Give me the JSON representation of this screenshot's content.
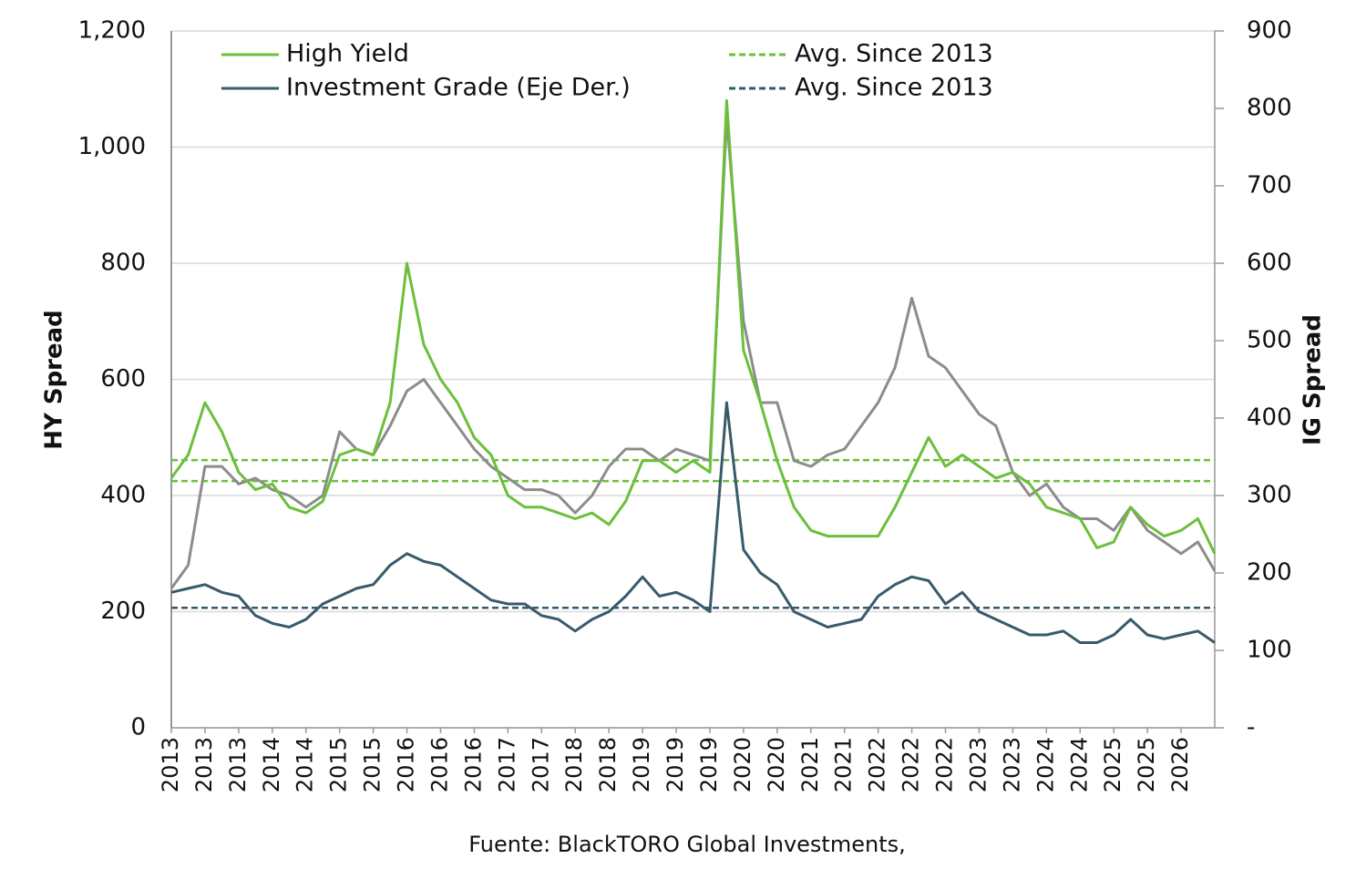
{
  "chart_data": {
    "type": "line",
    "source": "Fuente: BlackTORO Global Investments,",
    "ylabel": "HY Spread",
    "y2label": "IG Spread",
    "xlim": [
      0,
      31
    ],
    "xticks": [
      {
        "value": 0,
        "label": "2013"
      },
      {
        "value": 1,
        "label": "2013"
      },
      {
        "value": 2,
        "label": "2013"
      },
      {
        "value": 3,
        "label": "2014"
      },
      {
        "value": 4,
        "label": "2014"
      },
      {
        "value": 5,
        "label": "2015"
      },
      {
        "value": 6,
        "label": "2015"
      },
      {
        "value": 7,
        "label": "2016"
      },
      {
        "value": 8,
        "label": "2016"
      },
      {
        "value": 9,
        "label": "2016"
      },
      {
        "value": 10,
        "label": "2017"
      },
      {
        "value": 11,
        "label": "2017"
      },
      {
        "value": 12,
        "label": "2018"
      },
      {
        "value": 13,
        "label": "2018"
      },
      {
        "value": 14,
        "label": "2019"
      },
      {
        "value": 15,
        "label": "2019"
      },
      {
        "value": 16,
        "label": "2019"
      },
      {
        "value": 17,
        "label": "2020"
      },
      {
        "value": 18,
        "label": "2020"
      },
      {
        "value": 19,
        "label": "2021"
      },
      {
        "value": 20,
        "label": "2021"
      },
      {
        "value": 21,
        "label": "2022"
      },
      {
        "value": 22,
        "label": "2022"
      },
      {
        "value": 23,
        "label": "2022"
      },
      {
        "value": 24,
        "label": "2023"
      },
      {
        "value": 25,
        "label": "2023"
      },
      {
        "value": 26,
        "label": "2024"
      },
      {
        "value": 27,
        "label": "2024"
      },
      {
        "value": 28,
        "label": "2025"
      },
      {
        "value": 29,
        "label": "2025"
      },
      {
        "value": 30,
        "label": "2026"
      }
    ],
    "ylim": [
      0,
      1200
    ],
    "yticks": [
      0,
      200,
      400,
      600,
      800,
      {
        "value": 1000,
        "label": "1,000"
      },
      {
        "value": 1200,
        "label": "1,200"
      }
    ],
    "y2lim": [
      0,
      900
    ],
    "y2ticks": [
      {
        "value": 0,
        "label": "-"
      },
      100,
      200,
      300,
      400,
      500,
      600,
      700,
      800,
      900
    ],
    "grid": true,
    "x": [
      0,
      0.5,
      1,
      1.5,
      2,
      2.5,
      3,
      3.5,
      4,
      4.5,
      5,
      5.5,
      6,
      6.5,
      7,
      7.5,
      8,
      8.5,
      9,
      9.5,
      10,
      10.5,
      11,
      11.5,
      12,
      12.5,
      13,
      13.5,
      14,
      14.5,
      15,
      15.5,
      16,
      16.5,
      17,
      17.5,
      18,
      18.5,
      19,
      19.5,
      20,
      20.5,
      21,
      21.5,
      22,
      22.5,
      23,
      23.5,
      24,
      24.5,
      25,
      25.5,
      26,
      26.5,
      27,
      27.5,
      28,
      28.5,
      29,
      29.5,
      30,
      30.5,
      31
    ],
    "series": [
      {
        "color": "#8c8c8c",
        "values": [
          240,
          280,
          450,
          450,
          420,
          430,
          410,
          400,
          380,
          400,
          510,
          480,
          470,
          520,
          580,
          600,
          560,
          520,
          480,
          450,
          430,
          410,
          410,
          400,
          370,
          400,
          450,
          480,
          480,
          460,
          480,
          470,
          460,
          1050,
          700,
          560,
          560,
          460,
          450,
          470,
          480,
          520,
          560,
          620,
          740,
          640,
          620,
          580,
          540,
          520,
          440,
          400,
          420,
          380,
          360,
          360,
          340,
          380,
          340,
          320,
          300,
          320,
          270
        ]
      },
      {
        "name": "High Yield",
        "color": "#6cbf3b",
        "values": [
          430,
          470,
          560,
          510,
          440,
          410,
          420,
          380,
          370,
          390,
          470,
          480,
          470,
          560,
          800,
          660,
          600,
          560,
          500,
          470,
          400,
          380,
          380,
          370,
          360,
          370,
          350,
          390,
          460,
          460,
          440,
          460,
          440,
          1080,
          650,
          560,
          460,
          380,
          340,
          330,
          330,
          330,
          330,
          380,
          440,
          500,
          450,
          470,
          450,
          430,
          440,
          420,
          380,
          370,
          360,
          310,
          320,
          380,
          350,
          330,
          340,
          360,
          300
        ]
      },
      {
        "name": "Investment Grade (Eje Der.)",
        "color": "#395a6b",
        "axis": "y2",
        "values": [
          175,
          180,
          185,
          175,
          170,
          145,
          135,
          130,
          140,
          160,
          170,
          180,
          185,
          210,
          225,
          215,
          210,
          195,
          180,
          165,
          160,
          160,
          145,
          140,
          125,
          140,
          150,
          170,
          195,
          170,
          175,
          165,
          150,
          420,
          230,
          200,
          185,
          150,
          140,
          130,
          135,
          140,
          170,
          185,
          195,
          190,
          160,
          175,
          150,
          140,
          130,
          120,
          120,
          125,
          110,
          110,
          120,
          140,
          120,
          115,
          120,
          125,
          110
        ]
      }
    ],
    "reference_lines": [
      {
        "name": "Avg. Since 2013",
        "color": "#6cbf3b",
        "value": 461
      },
      {
        "color": "#6cbf3b",
        "value": 425
      },
      {
        "name": "Avg. Since 2013",
        "color": "#395a6b",
        "axis": "y2",
        "value": 155
      }
    ]
  }
}
